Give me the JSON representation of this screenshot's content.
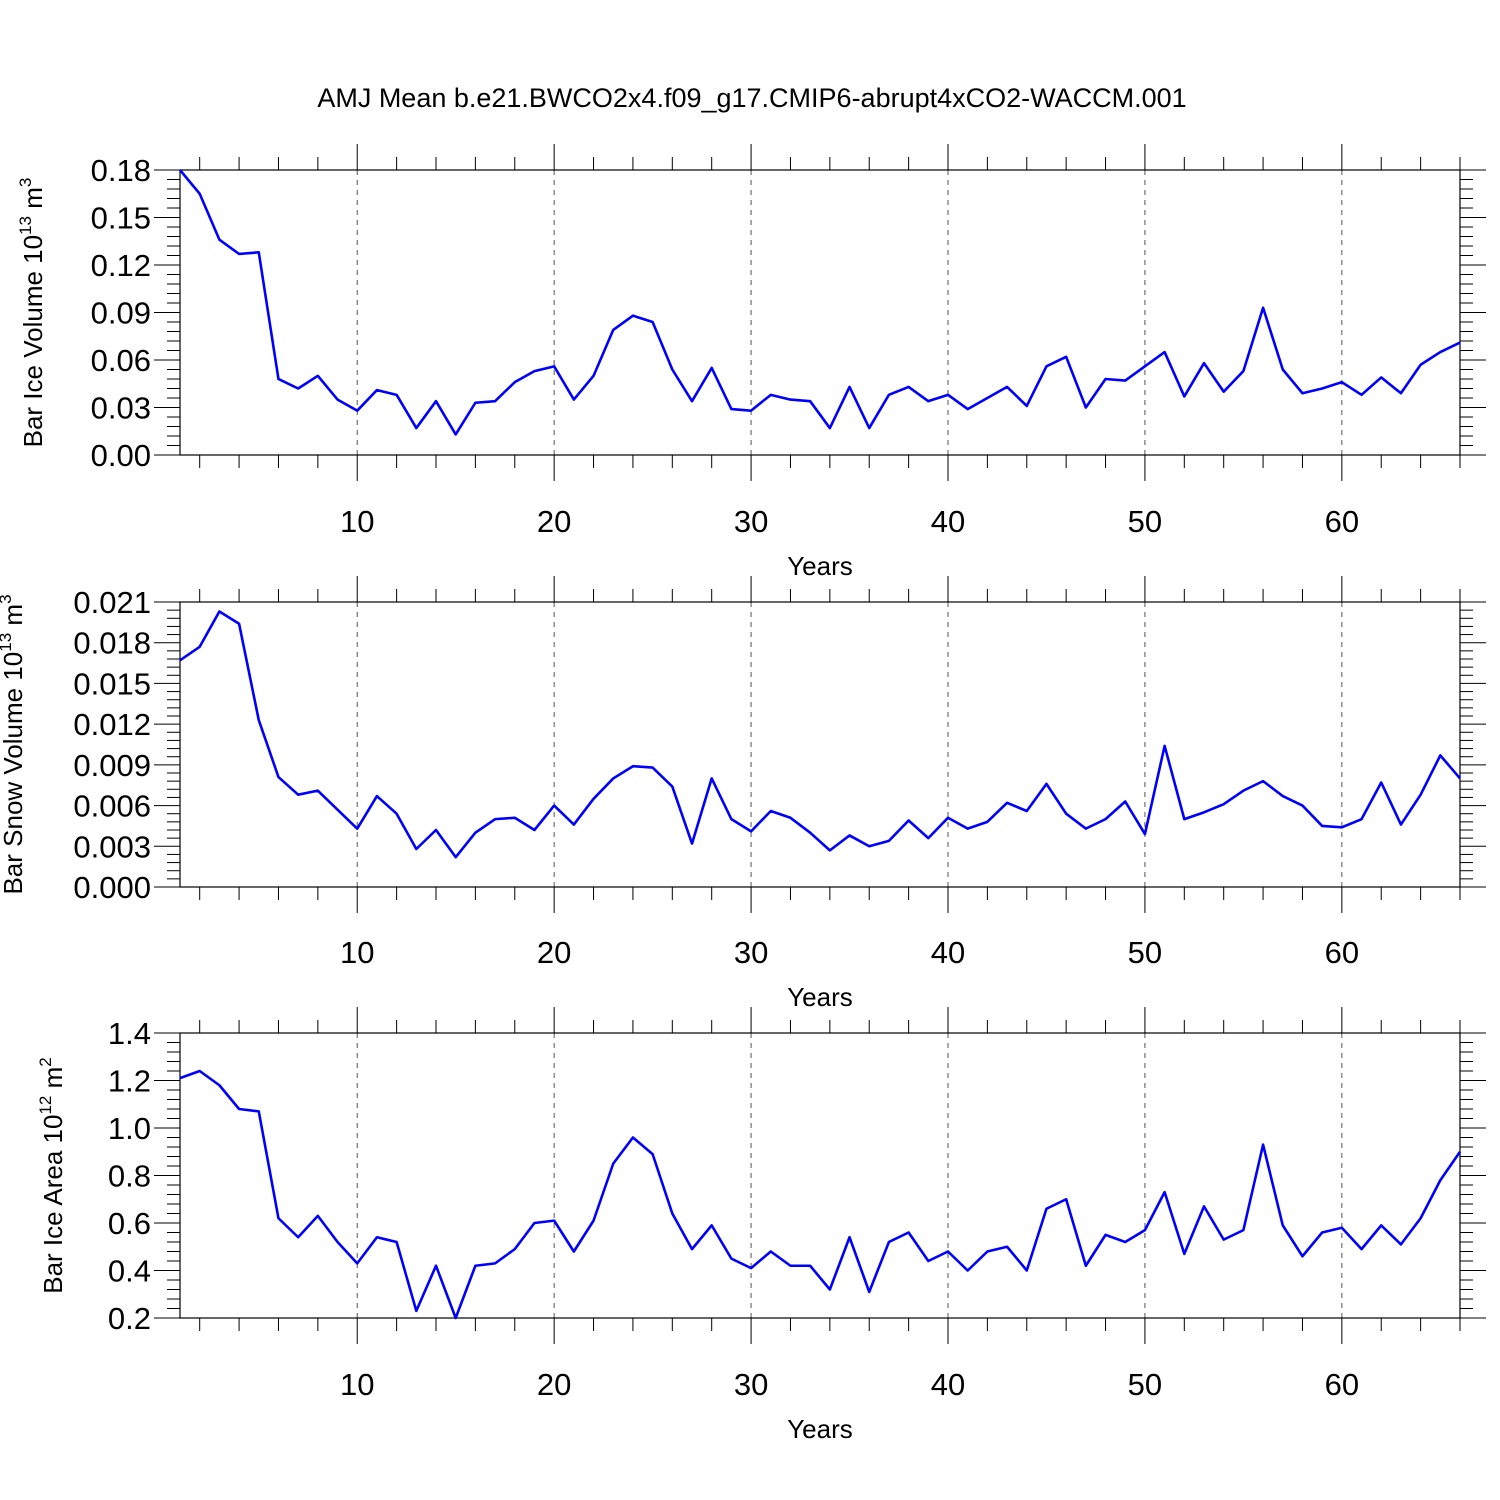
{
  "title": "AMJ Mean b.e21.BWCO2x4.f09_g17.CMIP6-abrupt4xCO2-WACCM.001",
  "colors": {
    "line": "#0000ff",
    "frame": "#000000",
    "grid": "#555555"
  },
  "chart_data": [
    {
      "type": "line",
      "ylabel": {
        "base": "Bar Ice Volume 10",
        "exp": "13",
        "unit": " m",
        "unit_exp": "3"
      },
      "xlabel": "Years",
      "xlim": [
        1,
        66
      ],
      "ylim": [
        0,
        0.18
      ],
      "xticks": [
        "10",
        "20",
        "30",
        "40",
        "50",
        "60"
      ],
      "yticks": [
        "0.00",
        "0.03",
        "0.06",
        "0.09",
        "0.12",
        "0.15",
        "0.18"
      ],
      "grid": "vertical dashed at x ticks",
      "series": [
        {
          "x": [
            1,
            2,
            3,
            4,
            5,
            6,
            7,
            8,
            9,
            10,
            11,
            12,
            13,
            14,
            15,
            16,
            17,
            18,
            19,
            20,
            21,
            22,
            23,
            24,
            25,
            26,
            27,
            28,
            29,
            30,
            31,
            32,
            33,
            34,
            35,
            36,
            37,
            38,
            39,
            40,
            41,
            42,
            43,
            44,
            45,
            46,
            47,
            48,
            49,
            50,
            51,
            52,
            53,
            54,
            55,
            56,
            57,
            58,
            59,
            60,
            61,
            62,
            63,
            64,
            65,
            66
          ],
          "values": [
            0.18,
            0.165,
            0.136,
            0.127,
            0.128,
            0.048,
            0.042,
            0.05,
            0.035,
            0.028,
            0.041,
            0.038,
            0.017,
            0.034,
            0.013,
            0.033,
            0.034,
            0.046,
            0.053,
            0.056,
            0.035,
            0.05,
            0.079,
            0.088,
            0.084,
            0.054,
            0.034,
            0.055,
            0.029,
            0.028,
            0.038,
            0.035,
            0.034,
            0.017,
            0.043,
            0.017,
            0.038,
            0.043,
            0.034,
            0.038,
            0.029,
            0.036,
            0.043,
            0.031,
            0.056,
            0.062,
            0.03,
            0.048,
            0.047,
            0.056,
            0.065,
            0.037,
            0.058,
            0.04,
            0.053,
            0.093,
            0.054,
            0.039,
            0.042,
            0.046,
            0.038,
            0.049,
            0.039,
            0.057,
            0.065,
            0.071
          ]
        }
      ]
    },
    {
      "type": "line",
      "ylabel": {
        "base": "Bar Snow Volume 10",
        "exp": "13",
        "unit": " m",
        "unit_exp": "3"
      },
      "xlabel": "Years",
      "xlim": [
        1,
        66
      ],
      "ylim": [
        0,
        0.021
      ],
      "xticks": [
        "10",
        "20",
        "30",
        "40",
        "50",
        "60"
      ],
      "yticks": [
        "0.000",
        "0.003",
        "0.006",
        "0.009",
        "0.012",
        "0.015",
        "0.018",
        "0.021"
      ],
      "grid": "vertical dashed at x ticks",
      "series": [
        {
          "x": [
            1,
            2,
            3,
            4,
            5,
            6,
            7,
            8,
            9,
            10,
            11,
            12,
            13,
            14,
            15,
            16,
            17,
            18,
            19,
            20,
            21,
            22,
            23,
            24,
            25,
            26,
            27,
            28,
            29,
            30,
            31,
            32,
            33,
            34,
            35,
            36,
            37,
            38,
            39,
            40,
            41,
            42,
            43,
            44,
            45,
            46,
            47,
            48,
            49,
            50,
            51,
            52,
            53,
            54,
            55,
            56,
            57,
            58,
            59,
            60,
            61,
            62,
            63,
            64,
            65,
            66
          ],
          "values": [
            0.0167,
            0.0177,
            0.0203,
            0.0194,
            0.0123,
            0.0081,
            0.0068,
            0.0071,
            0.0057,
            0.0043,
            0.0067,
            0.0054,
            0.0028,
            0.0042,
            0.0022,
            0.004,
            0.005,
            0.0051,
            0.0042,
            0.006,
            0.0046,
            0.0065,
            0.008,
            0.0089,
            0.0088,
            0.0074,
            0.0032,
            0.008,
            0.005,
            0.0041,
            0.0056,
            0.0051,
            0.004,
            0.0027,
            0.0038,
            0.003,
            0.0034,
            0.0049,
            0.0036,
            0.0051,
            0.0043,
            0.0048,
            0.0062,
            0.0056,
            0.0076,
            0.0054,
            0.0043,
            0.005,
            0.0063,
            0.0039,
            0.0104,
            0.005,
            0.0055,
            0.0061,
            0.0071,
            0.0078,
            0.0067,
            0.006,
            0.0045,
            0.0044,
            0.005,
            0.0077,
            0.0046,
            0.0068,
            0.0097,
            0.008
          ]
        }
      ]
    },
    {
      "type": "line",
      "ylabel": {
        "base": "Bar Ice Area 10",
        "exp": "12",
        "unit": " m",
        "unit_exp": "2"
      },
      "xlabel": "Years",
      "xlim": [
        1,
        66
      ],
      "ylim": [
        0.2,
        1.4
      ],
      "xticks": [
        "10",
        "20",
        "30",
        "40",
        "50",
        "60"
      ],
      "yticks": [
        "0.2",
        "0.4",
        "0.6",
        "0.8",
        "1.0",
        "1.2",
        "1.4"
      ],
      "grid": "vertical dashed at x ticks",
      "series": [
        {
          "x": [
            1,
            2,
            3,
            4,
            5,
            6,
            7,
            8,
            9,
            10,
            11,
            12,
            13,
            14,
            15,
            16,
            17,
            18,
            19,
            20,
            21,
            22,
            23,
            24,
            25,
            26,
            27,
            28,
            29,
            30,
            31,
            32,
            33,
            34,
            35,
            36,
            37,
            38,
            39,
            40,
            41,
            42,
            43,
            44,
            45,
            46,
            47,
            48,
            49,
            50,
            51,
            52,
            53,
            54,
            55,
            56,
            57,
            58,
            59,
            60,
            61,
            62,
            63,
            64,
            65,
            66
          ],
          "values": [
            1.21,
            1.24,
            1.18,
            1.08,
            1.07,
            0.62,
            0.54,
            0.63,
            0.52,
            0.43,
            0.54,
            0.52,
            0.23,
            0.42,
            0.2,
            0.42,
            0.43,
            0.49,
            0.6,
            0.61,
            0.48,
            0.61,
            0.85,
            0.96,
            0.89,
            0.64,
            0.49,
            0.59,
            0.45,
            0.41,
            0.48,
            0.42,
            0.42,
            0.32,
            0.54,
            0.31,
            0.52,
            0.56,
            0.44,
            0.48,
            0.4,
            0.48,
            0.5,
            0.4,
            0.66,
            0.7,
            0.42,
            0.55,
            0.52,
            0.57,
            0.73,
            0.47,
            0.67,
            0.53,
            0.57,
            0.93,
            0.59,
            0.46,
            0.56,
            0.58,
            0.49,
            0.59,
            0.51,
            0.62,
            0.78,
            0.9
          ]
        }
      ]
    }
  ]
}
